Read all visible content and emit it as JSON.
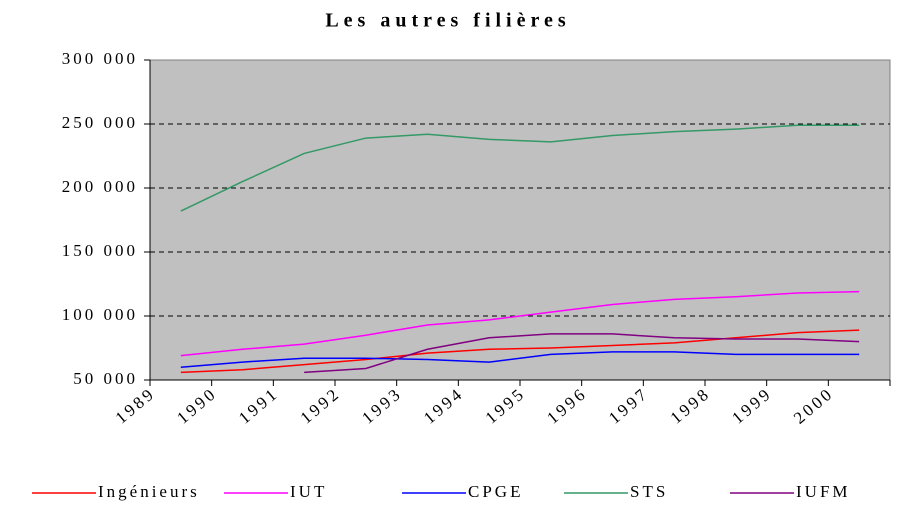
{
  "chart_data": {
    "type": "line",
    "title": "Les autres filières",
    "categories": [
      "1989",
      "1990",
      "1991",
      "1992",
      "1993",
      "1994",
      "1995",
      "1996",
      "1997",
      "1998",
      "1999",
      "2000"
    ],
    "series": [
      {
        "name": "Ingénieurs",
        "color": "#ff0000",
        "values": [
          56000,
          58000,
          62000,
          66000,
          71000,
          74000,
          75000,
          77000,
          79000,
          83000,
          87000,
          89000
        ]
      },
      {
        "name": "IUT",
        "color": "#ff00ff",
        "values": [
          69000,
          74000,
          78000,
          85000,
          93000,
          97000,
          103000,
          109000,
          113000,
          115000,
          118000,
          119000
        ]
      },
      {
        "name": "CPGE",
        "color": "#0000ff",
        "values": [
          60000,
          64000,
          67000,
          67000,
          66000,
          64000,
          70000,
          72000,
          72000,
          70000,
          70000,
          70000
        ]
      },
      {
        "name": "STS",
        "color": "#339966",
        "values": [
          182000,
          205000,
          227000,
          239000,
          242000,
          238000,
          236000,
          241000,
          244000,
          246000,
          249000,
          249000
        ]
      },
      {
        "name": "IUFM",
        "color": "#800080",
        "values": [
          null,
          null,
          56000,
          59000,
          74000,
          83000,
          86000,
          86000,
          83000,
          82000,
          82000,
          80000
        ]
      }
    ],
    "ylim": [
      50000,
      300000
    ],
    "yticks": [
      {
        "value": 50000,
        "label": "50 000"
      },
      {
        "value": 100000,
        "label": "100 000"
      },
      {
        "value": 150000,
        "label": "150 000"
      },
      {
        "value": 200000,
        "label": "200 000"
      },
      {
        "value": 250000,
        "label": "250 000"
      },
      {
        "value": 300000,
        "label": "300 000"
      }
    ],
    "grid": true,
    "legend": "bottom"
  }
}
